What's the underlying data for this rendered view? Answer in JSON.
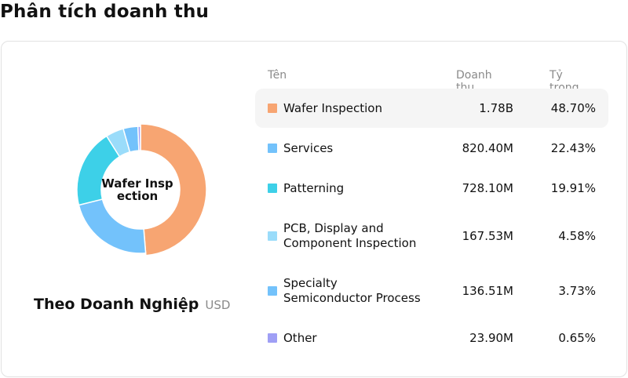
{
  "page": {
    "title": "Phân tích doanh thu"
  },
  "donut": {
    "center_label": "Wafer Insp\nection"
  },
  "caption": {
    "title": "Theo Doanh Nghiệp",
    "unit": "USD"
  },
  "table": {
    "headers": {
      "name": "Tên",
      "revenue": "Doanh thu",
      "share": "Tỷ trọng"
    },
    "rows": [
      {
        "name": "Wafer Inspection",
        "revenue": "1.78B",
        "share": "48.70%",
        "color": "#f7a572"
      },
      {
        "name": "Services",
        "revenue": "820.40M",
        "share": "22.43%",
        "color": "#73c2fb"
      },
      {
        "name": "Patterning",
        "revenue": "728.10M",
        "share": "19.91%",
        "color": "#3dd0e8"
      },
      {
        "name": "PCB, Display and\nComponent Inspection",
        "revenue": "167.53M",
        "share": "4.58%",
        "color": "#9adcfa"
      },
      {
        "name": "Specialty\nSemiconductor Process",
        "revenue": "136.51M",
        "share": "3.73%",
        "color": "#73c2fb"
      },
      {
        "name": "Other",
        "revenue": "23.90M",
        "share": "0.65%",
        "color": "#9f9ff5"
      }
    ]
  },
  "chart_data": {
    "type": "pie",
    "categories": [
      "Wafer Inspection",
      "Services",
      "Patterning",
      "PCB, Display and Component Inspection",
      "Specialty Semiconductor Process",
      "Other"
    ],
    "values": [
      48.7,
      22.43,
      19.91,
      4.58,
      3.73,
      0.65
    ],
    "revenue_labels": [
      "1.78B",
      "820.40M",
      "728.10M",
      "167.53M",
      "136.51M",
      "23.90M"
    ],
    "colors": [
      "#f7a572",
      "#73c2fb",
      "#3dd0e8",
      "#9adcfa",
      "#73c2fb",
      "#9f9ff5"
    ],
    "highlighted": "Wafer Inspection",
    "donut": true
  }
}
